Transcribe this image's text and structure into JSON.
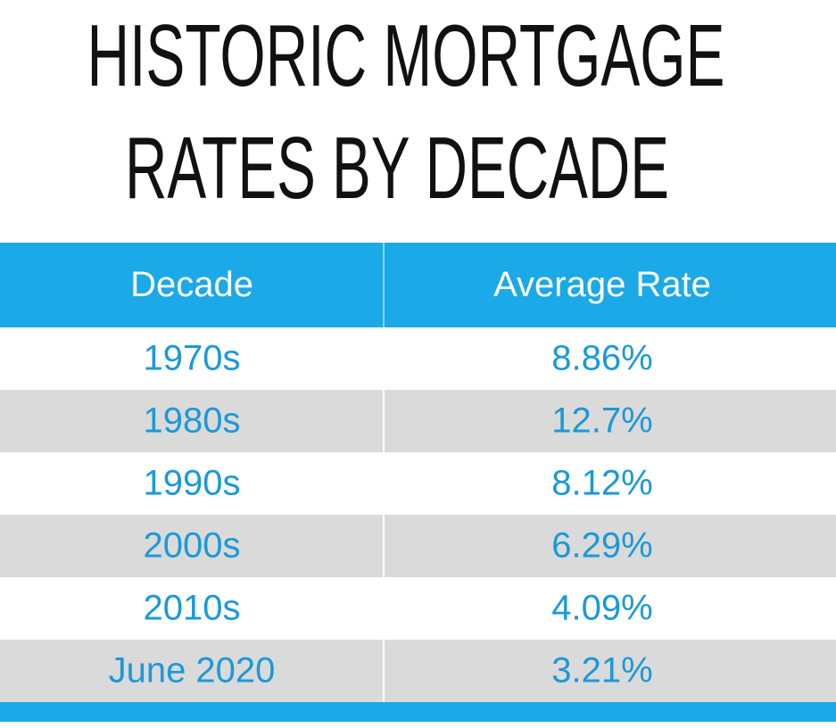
{
  "title": [
    "HISTORIC MORTGAGE",
    "RATES BY DECADE"
  ],
  "table": {
    "header": [
      "Decade",
      "Average Rate"
    ],
    "rows": [
      [
        "1970s",
        "8.86%"
      ],
      [
        "1980s",
        "12.7%"
      ],
      [
        "1990s",
        "8.12%"
      ],
      [
        "2000s",
        "6.29%"
      ],
      [
        "2010s",
        "4.09%"
      ],
      [
        "June 2020",
        "3.21%"
      ]
    ]
  }
}
